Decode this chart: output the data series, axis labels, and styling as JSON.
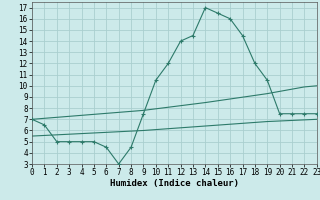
{
  "line1_x": [
    0,
    1,
    2,
    3,
    4,
    5,
    6,
    7,
    8,
    9,
    10,
    11,
    12,
    13,
    14,
    15,
    16,
    17,
    18,
    19,
    20,
    21,
    22,
    23
  ],
  "line1_y": [
    7.0,
    6.5,
    5.0,
    5.0,
    5.0,
    5.0,
    4.5,
    3.0,
    4.5,
    7.5,
    10.5,
    12.0,
    14.0,
    14.5,
    17.0,
    16.5,
    16.0,
    14.5,
    12.0,
    10.5,
    7.5,
    7.5,
    7.5,
    7.5
  ],
  "line2_x": [
    0,
    9,
    14,
    19,
    20,
    21,
    22,
    23
  ],
  "line2_y": [
    7.0,
    7.8,
    8.5,
    9.3,
    9.5,
    9.7,
    9.9,
    10.0
  ],
  "line3_x": [
    0,
    9,
    14,
    19,
    20,
    21,
    22,
    23
  ],
  "line3_y": [
    5.5,
    6.0,
    6.4,
    6.8,
    6.85,
    6.9,
    6.95,
    7.0
  ],
  "line_color": "#2d7a6a",
  "marker": "+",
  "bg_color": "#cceaea",
  "grid_color": "#aacfcf",
  "xlabel": "Humidex (Indice chaleur)",
  "xlim": [
    0,
    23
  ],
  "ylim": [
    3,
    17.5
  ],
  "yticks": [
    3,
    4,
    5,
    6,
    7,
    8,
    9,
    10,
    11,
    12,
    13,
    14,
    15,
    16,
    17
  ],
  "xticks": [
    0,
    1,
    2,
    3,
    4,
    5,
    6,
    7,
    8,
    9,
    10,
    11,
    12,
    13,
    14,
    15,
    16,
    17,
    18,
    19,
    20,
    21,
    22,
    23
  ],
  "xlabel_fontsize": 6.5,
  "tick_fontsize": 5.5
}
